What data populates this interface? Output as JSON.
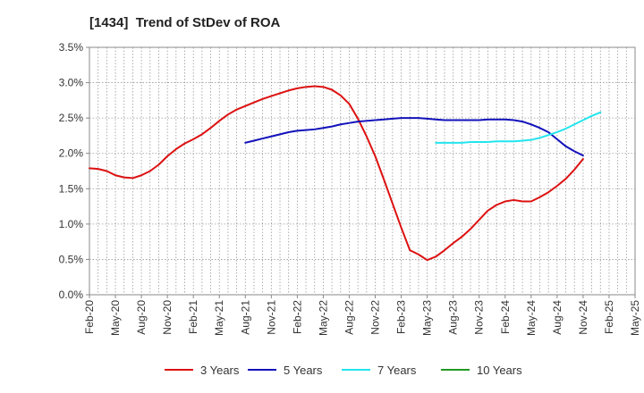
{
  "chart_data": {
    "type": "line",
    "title": "[1434]  Trend of StDev of ROA",
    "xlabel": "",
    "ylabel": "",
    "x_ticks": [
      "Feb-20",
      "May-20",
      "Aug-20",
      "Nov-20",
      "Feb-21",
      "May-21",
      "Aug-21",
      "Nov-21",
      "Feb-22",
      "May-22",
      "Aug-22",
      "Nov-22",
      "Feb-23",
      "May-23",
      "Aug-23",
      "Nov-23",
      "Feb-24",
      "May-24",
      "Aug-24",
      "Nov-24",
      "Feb-25",
      "May-25"
    ],
    "y_ticks": [
      "0.0%",
      "0.5%",
      "1.0%",
      "1.5%",
      "2.0%",
      "2.5%",
      "3.0%",
      "3.5%"
    ],
    "ylim": [
      0,
      3.5
    ],
    "grid": true,
    "legend_position": "bottom",
    "series": [
      {
        "name": "3 Years",
        "color": "#dd1111",
        "points": [
          [
            0,
            1.79
          ],
          [
            1,
            1.78
          ],
          [
            2,
            1.75
          ],
          [
            3,
            1.69
          ],
          [
            4,
            1.66
          ],
          [
            5,
            1.65
          ],
          [
            6,
            1.69
          ],
          [
            7,
            1.75
          ],
          [
            8,
            1.84
          ],
          [
            9,
            1.96
          ],
          [
            10,
            2.06
          ],
          [
            11,
            2.14
          ],
          [
            12,
            2.2
          ],
          [
            13,
            2.27
          ],
          [
            14,
            2.36
          ],
          [
            15,
            2.46
          ],
          [
            16,
            2.55
          ],
          [
            17,
            2.62
          ],
          [
            18,
            2.67
          ],
          [
            19,
            2.72
          ],
          [
            20,
            2.77
          ],
          [
            21,
            2.81
          ],
          [
            22,
            2.85
          ],
          [
            23,
            2.89
          ],
          [
            24,
            2.92
          ],
          [
            25,
            2.94
          ],
          [
            26,
            2.95
          ],
          [
            27,
            2.94
          ],
          [
            28,
            2.9
          ],
          [
            29,
            2.82
          ],
          [
            30,
            2.7
          ],
          [
            31,
            2.49
          ],
          [
            32,
            2.24
          ],
          [
            33,
            1.96
          ],
          [
            34,
            1.63
          ],
          [
            35,
            1.29
          ],
          [
            36,
            0.95
          ],
          [
            37,
            0.63
          ],
          [
            38,
            0.57
          ],
          [
            39,
            0.49
          ],
          [
            40,
            0.54
          ],
          [
            41,
            0.63
          ],
          [
            42,
            0.73
          ],
          [
            43,
            0.82
          ],
          [
            44,
            0.93
          ],
          [
            45,
            1.06
          ],
          [
            46,
            1.19
          ],
          [
            47,
            1.27
          ],
          [
            48,
            1.32
          ],
          [
            49,
            1.34
          ],
          [
            50,
            1.32
          ],
          [
            51,
            1.32
          ],
          [
            52,
            1.38
          ],
          [
            53,
            1.45
          ],
          [
            54,
            1.54
          ],
          [
            55,
            1.64
          ],
          [
            56,
            1.77
          ],
          [
            57,
            1.92
          ]
        ]
      },
      {
        "name": "5 Years",
        "color": "#1111bb",
        "points": [
          [
            18,
            2.15
          ],
          [
            19,
            2.18
          ],
          [
            20,
            2.21
          ],
          [
            21,
            2.24
          ],
          [
            22,
            2.27
          ],
          [
            23,
            2.3
          ],
          [
            24,
            2.32
          ],
          [
            25,
            2.33
          ],
          [
            26,
            2.34
          ],
          [
            27,
            2.36
          ],
          [
            28,
            2.38
          ],
          [
            29,
            2.41
          ],
          [
            30,
            2.43
          ],
          [
            31,
            2.45
          ],
          [
            32,
            2.46
          ],
          [
            33,
            2.47
          ],
          [
            34,
            2.48
          ],
          [
            35,
            2.49
          ],
          [
            36,
            2.5
          ],
          [
            37,
            2.5
          ],
          [
            38,
            2.5
          ],
          [
            39,
            2.49
          ],
          [
            40,
            2.48
          ],
          [
            41,
            2.47
          ],
          [
            42,
            2.47
          ],
          [
            43,
            2.47
          ],
          [
            44,
            2.47
          ],
          [
            45,
            2.47
          ],
          [
            46,
            2.48
          ],
          [
            47,
            2.48
          ],
          [
            48,
            2.48
          ],
          [
            49,
            2.47
          ],
          [
            50,
            2.45
          ],
          [
            51,
            2.41
          ],
          [
            52,
            2.36
          ],
          [
            53,
            2.3
          ],
          [
            54,
            2.2
          ],
          [
            55,
            2.1
          ],
          [
            56,
            2.03
          ],
          [
            57,
            1.97
          ]
        ]
      },
      {
        "name": "7 Years",
        "color": "#22e5ee",
        "points": [
          [
            40,
            2.15
          ],
          [
            41,
            2.15
          ],
          [
            42,
            2.15
          ],
          [
            43,
            2.15
          ],
          [
            44,
            2.16
          ],
          [
            45,
            2.16
          ],
          [
            46,
            2.16
          ],
          [
            47,
            2.17
          ],
          [
            48,
            2.17
          ],
          [
            49,
            2.17
          ],
          [
            50,
            2.18
          ],
          [
            51,
            2.19
          ],
          [
            52,
            2.22
          ],
          [
            53,
            2.26
          ],
          [
            54,
            2.3
          ],
          [
            55,
            2.35
          ],
          [
            56,
            2.41
          ],
          [
            57,
            2.47
          ],
          [
            58,
            2.53
          ],
          [
            59,
            2.58
          ]
        ]
      },
      {
        "name": "10 Years",
        "color": "#229922",
        "points": []
      }
    ]
  }
}
